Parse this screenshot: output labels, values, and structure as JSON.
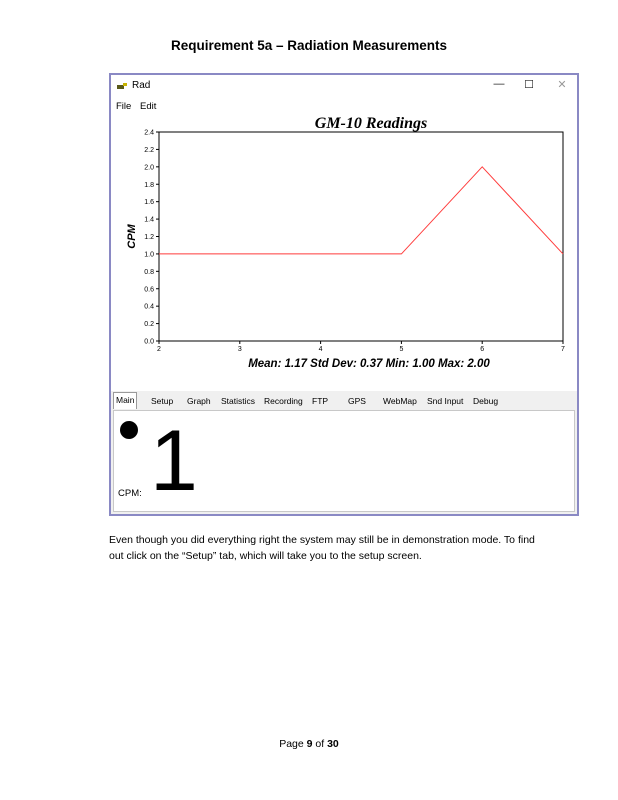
{
  "document": {
    "heading": "Requirement 5a – Radiation Measurements",
    "body_text": "Even though you did everything right the system may still be in demonstration mode.  To find out click on the “Setup” tab, which will take you to the setup screen.",
    "footer": {
      "prefix": "Page ",
      "page": "9",
      "middle": " of ",
      "total": "30"
    }
  },
  "window": {
    "title": "Rad",
    "controls": {
      "minimize": "—",
      "maximize": "☐",
      "close": "✕"
    },
    "menu": [
      "File",
      "Edit"
    ]
  },
  "chart": {
    "stats": "Mean: 1.17    Std Dev: 0.37    Min: 1.00    Max: 2.00",
    "line_color": "#ff3b3b"
  },
  "chart_data": {
    "type": "line",
    "title": "GM-10 Readings",
    "xlabel": "",
    "ylabel": "CPM",
    "xlim": [
      2,
      7
    ],
    "ylim": [
      0,
      2.4
    ],
    "xticks": [
      "2",
      "3",
      "4",
      "5",
      "6",
      "7"
    ],
    "yticks": [
      "0.0",
      "0.2",
      "0.4",
      "0.6",
      "0.8",
      "1.0",
      "1.2",
      "1.4",
      "1.6",
      "1.8",
      "2.0",
      "2.2",
      "2.4"
    ],
    "series": [
      {
        "x": [
          2,
          5,
          6,
          7
        ],
        "y": [
          1.0,
          1.0,
          2.0,
          1.0
        ]
      }
    ],
    "grid": false
  },
  "tabs": [
    "Main",
    "Setup",
    "Graph",
    "Statistics",
    "Recording",
    "FTP",
    "GPS",
    "WebMap",
    "Snd Input",
    "Debug"
  ],
  "main_panel": {
    "cpm_value": "1",
    "cpm_label": "CPM:"
  }
}
